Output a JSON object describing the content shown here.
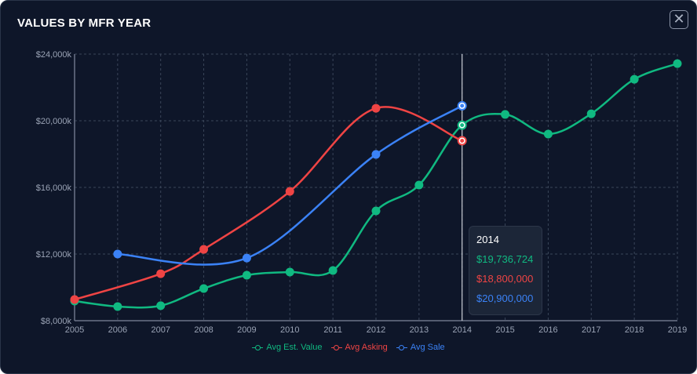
{
  "header": {
    "title": "VALUES BY MFR YEAR",
    "close_icon": "close-icon"
  },
  "chart_data": {
    "type": "line",
    "title": "VALUES BY MFR YEAR",
    "x": [
      2005,
      2006,
      2007,
      2008,
      2009,
      2010,
      2011,
      2012,
      2013,
      2014,
      2015,
      2016,
      2017,
      2018,
      2019
    ],
    "x_tick_labels": [
      "2005",
      "2006",
      "2007",
      "2008",
      "2009",
      "2010",
      "2011",
      "2012",
      "2013",
      "2014",
      "2015",
      "2016",
      "2017",
      "2018",
      "2019"
    ],
    "ylim": [
      8000000,
      24000000
    ],
    "y_ticks": [
      8000000,
      12000000,
      16000000,
      20000000,
      24000000
    ],
    "y_tick_labels": [
      "$8,000k",
      "$12,000k",
      "$16,000k",
      "$20,000k",
      "$24,000k"
    ],
    "grid": true,
    "legend": "bottom",
    "series": [
      {
        "name": "Avg Est. Value",
        "color": "#10b981",
        "values": [
          9180000,
          8850000,
          8900000,
          9930000,
          10730000,
          10920000,
          11010000,
          14590000,
          16140000,
          19736724,
          20380000,
          19200000,
          20420000,
          22490000,
          23430000
        ]
      },
      {
        "name": "Avg Asking",
        "color": "#ef4444",
        "values": [
          9270000,
          null,
          10820000,
          12280000,
          null,
          15760000,
          null,
          20750000,
          null,
          18800000,
          null,
          null,
          null,
          null,
          null
        ]
      },
      {
        "name": "Avg Sale",
        "color": "#3b82f6",
        "values": [
          null,
          12000000,
          null,
          null,
          11760000,
          null,
          null,
          17980000,
          null,
          20900000,
          null,
          null,
          null,
          null,
          null
        ]
      }
    ],
    "hover_year": 2014,
    "tooltip": {
      "title": "2014",
      "lines": [
        "$19,736,724",
        "$18,800,000",
        "$20,900,000"
      ]
    }
  }
}
